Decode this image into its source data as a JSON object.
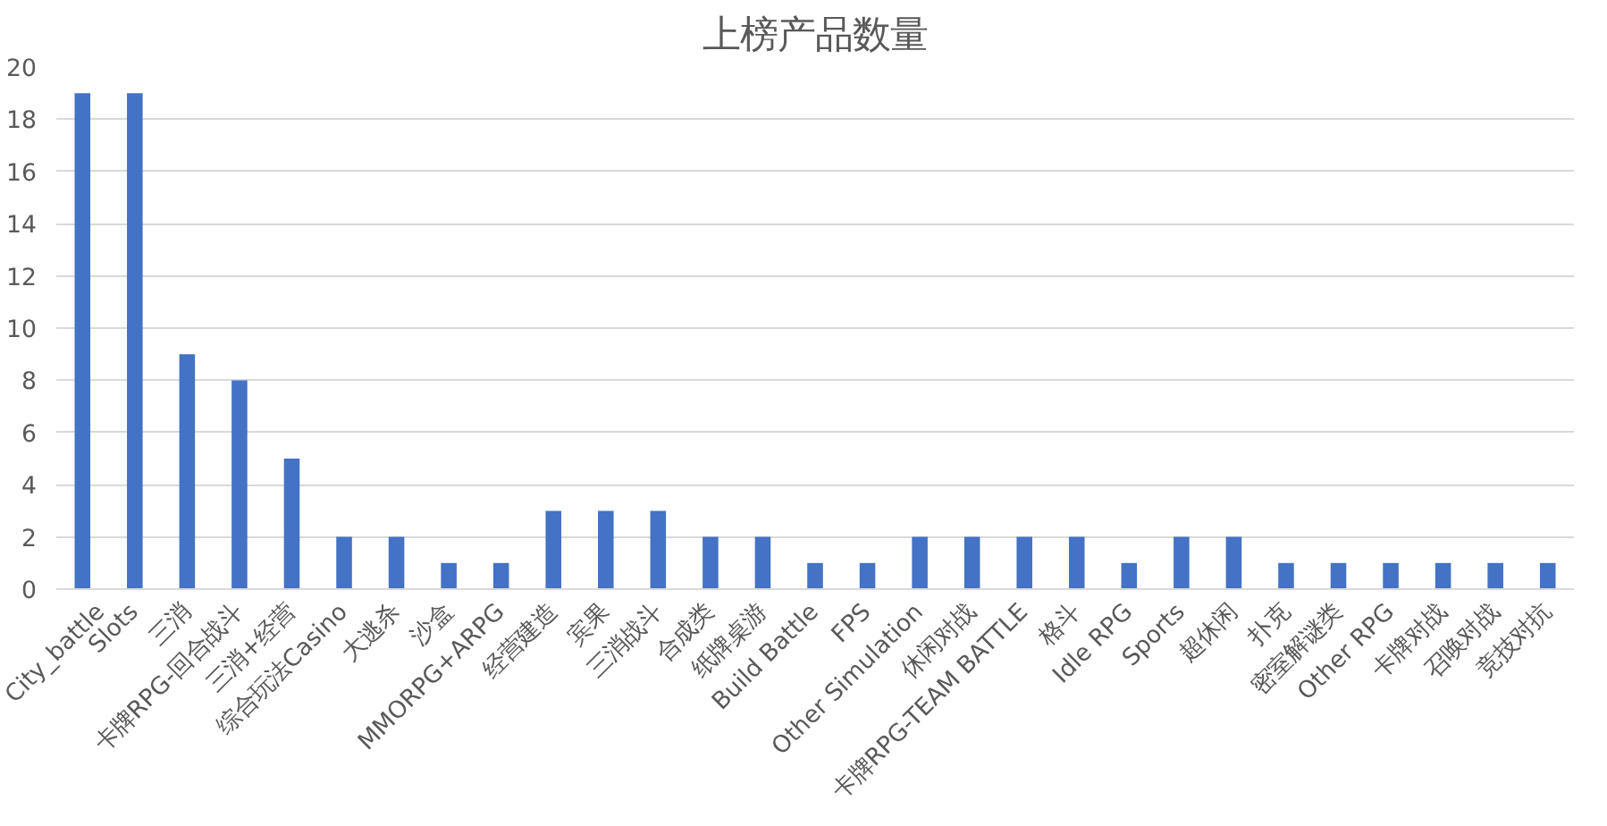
{
  "chart_data": {
    "type": "bar",
    "title": "上榜产品数量",
    "categories": [
      "City_battle",
      "Slots",
      "三消",
      "卡牌RPG-回合战斗",
      "三消+经营",
      "综合玩法Casino",
      "大逃杀",
      "沙盒",
      "MMORPG+ARPG",
      "经营建造",
      "宾果",
      "三消战斗",
      "合成类",
      "纸牌桌游",
      "Build Battle",
      "FPS",
      "Other Simulation",
      "休闲对战",
      "卡牌RPG-TEAM BATTLE",
      "格斗",
      "Idle RPG",
      "Sports",
      "超休闲",
      "扑克",
      "密室解谜类",
      "Other RPG",
      "卡牌对战",
      "召唤对战",
      "竞技对抗"
    ],
    "values": [
      19,
      19,
      9,
      8,
      5,
      2,
      2,
      1,
      1,
      3,
      3,
      3,
      2,
      2,
      1,
      1,
      2,
      2,
      2,
      2,
      1,
      2,
      2,
      1,
      1,
      1,
      1,
      1,
      1
    ],
    "color": "#4472c4",
    "ylim": [
      0,
      20
    ],
    "yticks": [
      0,
      2,
      4,
      6,
      8,
      10,
      12,
      14,
      16,
      18,
      20
    ],
    "grid": "y"
  }
}
